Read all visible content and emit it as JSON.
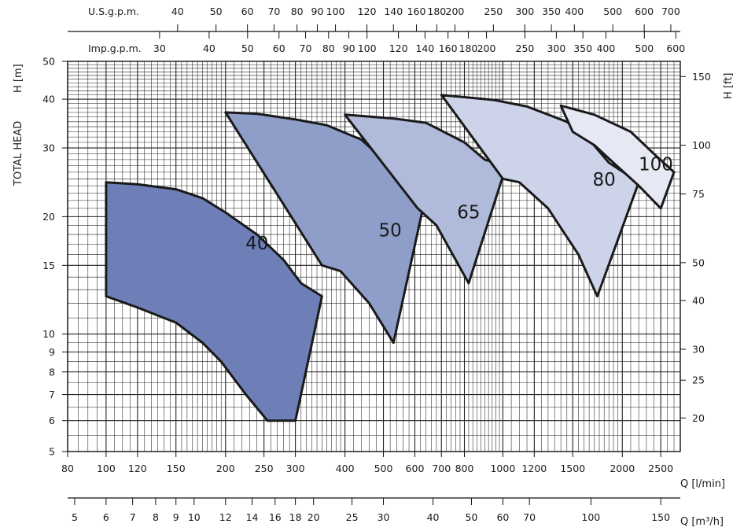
{
  "chart_data": {
    "type": "area",
    "xlabel": "Q [l/min]",
    "ylabel": "H [m]",
    "ylabel_group": "TOTAL HEAD",
    "ylabel_right": "H [ft]",
    "x_scale": "log",
    "y_scale": "log",
    "xlim": [
      80,
      2800
    ],
    "ylim": [
      5,
      50
    ],
    "grid": true,
    "x_ticks": [
      80,
      100,
      120,
      150,
      200,
      250,
      300,
      400,
      500,
      600,
      700,
      800,
      1000,
      1200,
      1500,
      2000,
      2500
    ],
    "y_ticks": [
      5,
      6,
      7,
      8,
      9,
      10,
      15,
      20,
      30,
      40,
      50
    ],
    "y_right_ticks": [
      20,
      25,
      30,
      40,
      50,
      75,
      100,
      150
    ],
    "secondary_x_axes": [
      {
        "label": "U.S.g.p.m.",
        "ticks": [
          40,
          50,
          60,
          70,
          80,
          90,
          100,
          120,
          140,
          160,
          180,
          200,
          250,
          300,
          350,
          400,
          500,
          600,
          700
        ]
      },
      {
        "label": "Imp.g.p.m.",
        "ticks": [
          30,
          40,
          50,
          60,
          70,
          80,
          90,
          100,
          120,
          140,
          160,
          180,
          200,
          250,
          300,
          350,
          400,
          500,
          600
        ]
      },
      {
        "label": "Q [m³/h]",
        "ticks": [
          5,
          6,
          7,
          8,
          9,
          10,
          12,
          14,
          16,
          18,
          20,
          25,
          30,
          40,
          50,
          60,
          70,
          100,
          150
        ]
      }
    ],
    "series": [
      {
        "name": "40",
        "color": "#6e7fb8",
        "outline": [
          [
            100,
            24.5
          ],
          [
            120,
            24.2
          ],
          [
            150,
            23.5
          ],
          [
            175,
            22.3
          ],
          [
            200,
            20.5
          ],
          [
            240,
            18.0
          ],
          [
            280,
            15.5
          ],
          [
            310,
            13.5
          ],
          [
            350,
            12.5
          ],
          [
            300,
            6.0
          ],
          [
            255,
            6.0
          ],
          [
            225,
            7.0
          ],
          [
            195,
            8.5
          ],
          [
            175,
            9.5
          ],
          [
            150,
            10.7
          ],
          [
            120,
            11.7
          ],
          [
            100,
            12.5
          ]
        ]
      },
      {
        "name": "50",
        "color": "#8e9ec9",
        "outline": [
          [
            200,
            37.0
          ],
          [
            240,
            36.7
          ],
          [
            300,
            35.5
          ],
          [
            360,
            34.3
          ],
          [
            440,
            31.5
          ],
          [
            500,
            28.0
          ],
          [
            560,
            25.0
          ],
          [
            650,
            24.5
          ],
          [
            530,
            9.5
          ],
          [
            460,
            12.0
          ],
          [
            390,
            14.5
          ],
          [
            350,
            15.0
          ]
        ]
      },
      {
        "name": "65",
        "color": "#b0bbdc",
        "outline": [
          [
            400,
            36.5
          ],
          [
            530,
            35.7
          ],
          [
            640,
            34.8
          ],
          [
            800,
            31.0
          ],
          [
            900,
            28.0
          ],
          [
            1020,
            27.0
          ],
          [
            820,
            13.5
          ],
          [
            680,
            19.0
          ],
          [
            610,
            21.0
          ]
        ]
      },
      {
        "name": "80",
        "color": "#cdd4e9",
        "outline": [
          [
            700,
            41.0
          ],
          [
            950,
            39.8
          ],
          [
            1150,
            38.3
          ],
          [
            1450,
            35.0
          ],
          [
            1650,
            31.5
          ],
          [
            1850,
            27.5
          ],
          [
            2200,
            24.5
          ],
          [
            1730,
            12.5
          ],
          [
            1550,
            16.0
          ],
          [
            1300,
            21.0
          ],
          [
            1100,
            24.5
          ],
          [
            1000,
            25.0
          ]
        ]
      },
      {
        "name": "100",
        "color": "#e6e9f3",
        "outline": [
          [
            1400,
            38.5
          ],
          [
            1700,
            36.5
          ],
          [
            2100,
            33.0
          ],
          [
            2400,
            29.0
          ],
          [
            2700,
            26.0
          ],
          [
            2500,
            21.0
          ],
          [
            2200,
            24.0
          ],
          [
            1900,
            27.5
          ],
          [
            1700,
            30.5
          ],
          [
            1500,
            33.0
          ]
        ]
      }
    ]
  }
}
